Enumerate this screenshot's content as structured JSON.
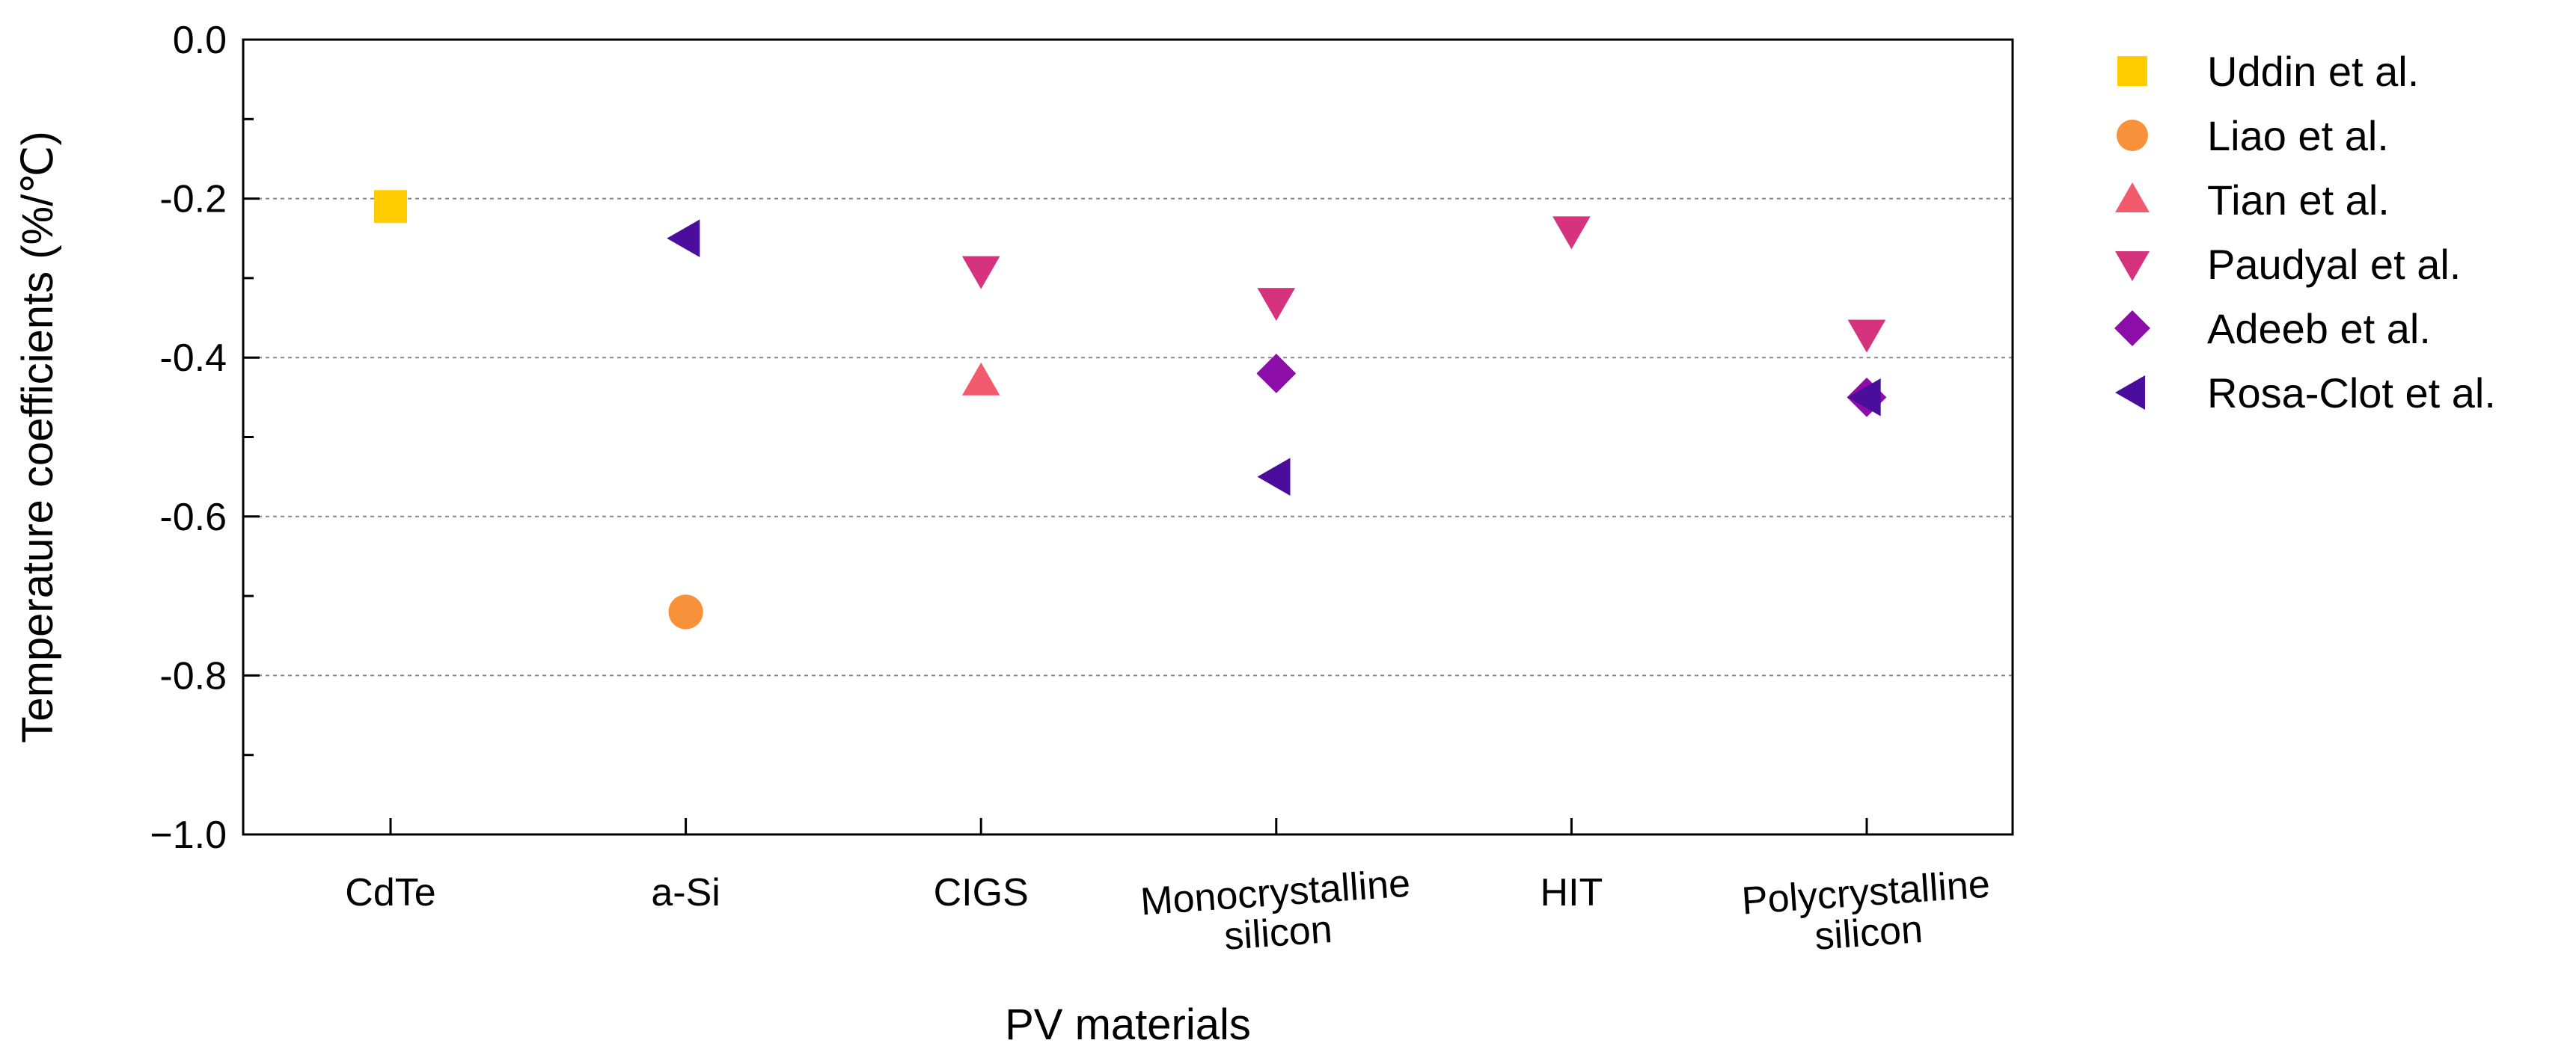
{
  "chart_data": {
    "type": "scatter",
    "categories": [
      "CdTe",
      "a-Si",
      "CIGS",
      "Monocrystalline silicon",
      "HIT",
      "Polycrystalline silicon"
    ],
    "category_label_lines": [
      [
        "CdTe"
      ],
      [
        "a-Si"
      ],
      [
        "CIGS"
      ],
      [
        "Monocrystalline",
        "silicon"
      ],
      [
        "HIT"
      ],
      [
        "Polycrystalline",
        "silicon"
      ]
    ],
    "xlabel": "PV materials",
    "ylabel": "Temperature coefficients (%/℃)",
    "ylim": [
      -1.0,
      0.0
    ],
    "yticks": [
      0.0,
      -0.2,
      -0.4,
      -0.6,
      -0.8,
      -1.0
    ],
    "ytick_labels": [
      "0.0",
      "-0.2",
      "-0.4",
      "-0.6",
      "-0.8",
      "−1.0"
    ],
    "gridlines": [
      -0.2,
      -0.4,
      -0.6,
      -0.8
    ],
    "legend_position": "right",
    "series": [
      {
        "name": "Uddin et al.",
        "marker": "square",
        "color": "#FFCC00",
        "points": [
          {
            "category": "CdTe",
            "value": -0.21
          }
        ]
      },
      {
        "name": "Liao et al.",
        "marker": "circle",
        "color": "#F7923A",
        "points": [
          {
            "category": "a-Si",
            "value": -0.72
          }
        ]
      },
      {
        "name": "Tian et al.",
        "marker": "triangle-up",
        "color": "#F25A6E",
        "points": [
          {
            "category": "CIGS",
            "value": -0.43
          }
        ]
      },
      {
        "name": "Paudyal et al.",
        "marker": "triangle-down",
        "color": "#D6337F",
        "points": [
          {
            "category": "CIGS",
            "value": -0.29
          },
          {
            "category": "Monocrystalline silicon",
            "value": -0.33
          },
          {
            "category": "HIT",
            "value": -0.24
          },
          {
            "category": "Polycrystalline silicon",
            "value": -0.37
          }
        ]
      },
      {
        "name": "Adeeb et al.",
        "marker": "diamond",
        "color": "#8C0DA8",
        "points": [
          {
            "category": "Monocrystalline silicon",
            "value": -0.42
          },
          {
            "category": "Polycrystalline silicon",
            "value": -0.45
          }
        ]
      },
      {
        "name": "Rosa-Clot et al.",
        "marker": "triangle-left",
        "color": "#4B0E9C",
        "points": [
          {
            "category": "a-Si",
            "value": -0.25
          },
          {
            "category": "Monocrystalline silicon",
            "value": -0.55
          },
          {
            "category": "Polycrystalline silicon",
            "value": -0.45
          }
        ]
      }
    ]
  }
}
